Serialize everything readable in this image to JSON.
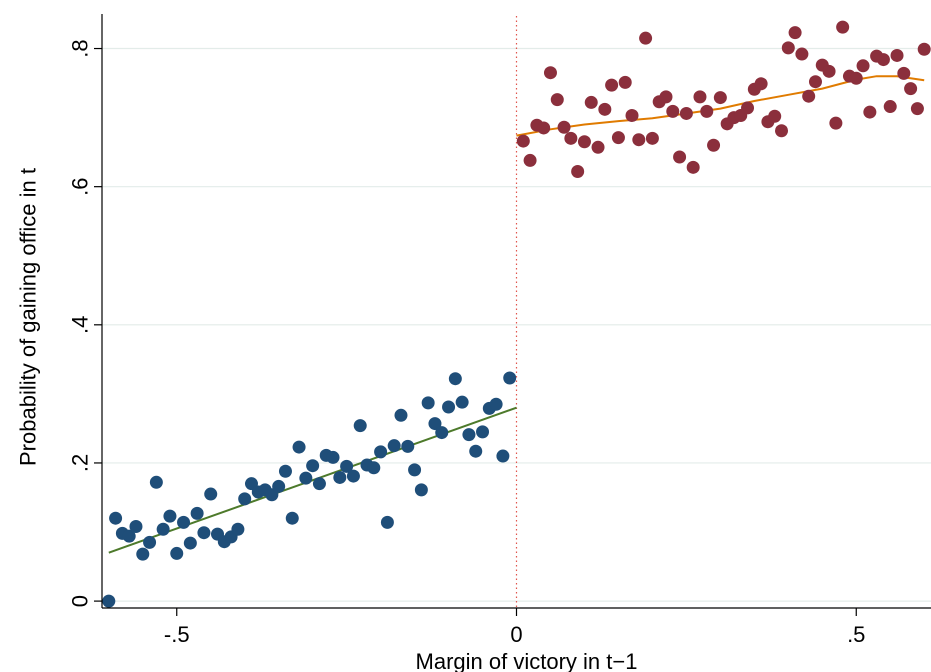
{
  "chart_data": {
    "type": "scatter",
    "title": "",
    "xlabel": "Margin of victory in t−1",
    "ylabel": "Probability of gaining office in t",
    "xlim": [
      -0.61,
      0.61
    ],
    "ylim": [
      -0.01,
      0.85
    ],
    "x_ticks": [
      {
        "value": -0.5,
        "label": "-.5"
      },
      {
        "value": 0,
        "label": "0"
      },
      {
        "value": 0.5,
        "label": ".5"
      }
    ],
    "y_ticks": [
      {
        "value": 0,
        "label": "0"
      },
      {
        "value": 0.2,
        "label": ".2"
      },
      {
        "value": 0.4,
        "label": ".4"
      },
      {
        "value": 0.6,
        "label": ".6"
      },
      {
        "value": 0.8,
        "label": ".8"
      }
    ],
    "grid": "horizontal",
    "colors": {
      "losers_points": "#1f4e79",
      "winners_points": "#8b2f3c",
      "losers_fit": "#4d7a2b",
      "winners_fit": "#e07b00",
      "cutoff_line": "#e0554d",
      "grid": "#e3ece9"
    },
    "cutoff": 0,
    "series": [
      {
        "type": "scatter",
        "points": [
          [
            -0.6,
            0.0
          ],
          [
            -0.59,
            0.12
          ],
          [
            -0.58,
            0.098
          ],
          [
            -0.57,
            0.094
          ],
          [
            -0.56,
            0.108
          ],
          [
            -0.55,
            0.068
          ],
          [
            -0.54,
            0.085
          ],
          [
            -0.53,
            0.172
          ],
          [
            -0.52,
            0.104
          ],
          [
            -0.51,
            0.123
          ],
          [
            -0.5,
            0.069
          ],
          [
            -0.49,
            0.114
          ],
          [
            -0.48,
            0.084
          ],
          [
            -0.47,
            0.127
          ],
          [
            -0.46,
            0.099
          ],
          [
            -0.45,
            0.155
          ],
          [
            -0.44,
            0.097
          ],
          [
            -0.43,
            0.086
          ],
          [
            -0.42,
            0.093
          ],
          [
            -0.41,
            0.104
          ],
          [
            -0.4,
            0.148
          ],
          [
            -0.39,
            0.17
          ],
          [
            -0.38,
            0.158
          ],
          [
            -0.37,
            0.161
          ],
          [
            -0.36,
            0.154
          ],
          [
            -0.35,
            0.166
          ],
          [
            -0.34,
            0.188
          ],
          [
            -0.33,
            0.12
          ],
          [
            -0.32,
            0.223
          ],
          [
            -0.31,
            0.178
          ],
          [
            -0.3,
            0.196
          ],
          [
            -0.29,
            0.17
          ],
          [
            -0.28,
            0.211
          ],
          [
            -0.27,
            0.208
          ],
          [
            -0.26,
            0.179
          ],
          [
            -0.25,
            0.195
          ],
          [
            -0.24,
            0.181
          ],
          [
            -0.23,
            0.254
          ],
          [
            -0.22,
            0.197
          ],
          [
            -0.21,
            0.193
          ],
          [
            -0.2,
            0.216
          ],
          [
            -0.19,
            0.114
          ],
          [
            -0.18,
            0.225
          ],
          [
            -0.17,
            0.269
          ],
          [
            -0.16,
            0.224
          ],
          [
            -0.15,
            0.19
          ],
          [
            -0.14,
            0.161
          ],
          [
            -0.13,
            0.287
          ],
          [
            -0.12,
            0.257
          ],
          [
            -0.11,
            0.244
          ],
          [
            -0.1,
            0.281
          ],
          [
            -0.09,
            0.322
          ],
          [
            -0.08,
            0.288
          ],
          [
            -0.07,
            0.241
          ],
          [
            -0.06,
            0.217
          ],
          [
            -0.05,
            0.245
          ],
          [
            -0.04,
            0.279
          ],
          [
            -0.03,
            0.285
          ],
          [
            -0.02,
            0.21
          ],
          [
            -0.01,
            0.323
          ]
        ]
      },
      {
        "type": "scatter",
        "points": [
          [
            0.01,
            0.666
          ],
          [
            0.02,
            0.638
          ],
          [
            0.03,
            0.689
          ],
          [
            0.04,
            0.685
          ],
          [
            0.05,
            0.765
          ],
          [
            0.06,
            0.726
          ],
          [
            0.07,
            0.686
          ],
          [
            0.08,
            0.67
          ],
          [
            0.09,
            0.622
          ],
          [
            0.1,
            0.665
          ],
          [
            0.11,
            0.722
          ],
          [
            0.12,
            0.657
          ],
          [
            0.13,
            0.712
          ],
          [
            0.14,
            0.747
          ],
          [
            0.15,
            0.671
          ],
          [
            0.16,
            0.751
          ],
          [
            0.17,
            0.703
          ],
          [
            0.18,
            0.668
          ],
          [
            0.19,
            0.815
          ],
          [
            0.2,
            0.67
          ],
          [
            0.21,
            0.723
          ],
          [
            0.22,
            0.73
          ],
          [
            0.23,
            0.709
          ],
          [
            0.24,
            0.643
          ],
          [
            0.25,
            0.706
          ],
          [
            0.26,
            0.628
          ],
          [
            0.27,
            0.73
          ],
          [
            0.28,
            0.709
          ],
          [
            0.29,
            0.66
          ],
          [
            0.3,
            0.729
          ],
          [
            0.31,
            0.691
          ],
          [
            0.32,
            0.7
          ],
          [
            0.33,
            0.703
          ],
          [
            0.34,
            0.714
          ],
          [
            0.35,
            0.741
          ],
          [
            0.36,
            0.749
          ],
          [
            0.37,
            0.694
          ],
          [
            0.38,
            0.702
          ],
          [
            0.39,
            0.681
          ],
          [
            0.4,
            0.801
          ],
          [
            0.41,
            0.823
          ],
          [
            0.42,
            0.792
          ],
          [
            0.43,
            0.731
          ],
          [
            0.44,
            0.752
          ],
          [
            0.45,
            0.776
          ],
          [
            0.46,
            0.767
          ],
          [
            0.47,
            0.692
          ],
          [
            0.48,
            0.831
          ],
          [
            0.49,
            0.76
          ],
          [
            0.5,
            0.757
          ],
          [
            0.51,
            0.775
          ],
          [
            0.52,
            0.708
          ],
          [
            0.53,
            0.789
          ],
          [
            0.54,
            0.784
          ],
          [
            0.55,
            0.716
          ],
          [
            0.56,
            0.79
          ],
          [
            0.57,
            0.764
          ],
          [
            0.58,
            0.742
          ],
          [
            0.59,
            0.713
          ],
          [
            0.6,
            0.799
          ]
        ]
      },
      {
        "type": "line",
        "points": [
          [
            -0.6,
            0.07
          ],
          [
            0.0,
            0.28
          ]
        ]
      },
      {
        "type": "line",
        "points": [
          [
            0.0,
            0.674
          ],
          [
            0.05,
            0.683
          ],
          [
            0.1,
            0.69
          ],
          [
            0.15,
            0.695
          ],
          [
            0.2,
            0.699
          ],
          [
            0.25,
            0.706
          ],
          [
            0.3,
            0.713
          ],
          [
            0.35,
            0.724
          ],
          [
            0.4,
            0.733
          ],
          [
            0.45,
            0.742
          ],
          [
            0.5,
            0.755
          ],
          [
            0.53,
            0.76
          ],
          [
            0.56,
            0.76
          ],
          [
            0.6,
            0.754
          ]
        ]
      }
    ]
  }
}
